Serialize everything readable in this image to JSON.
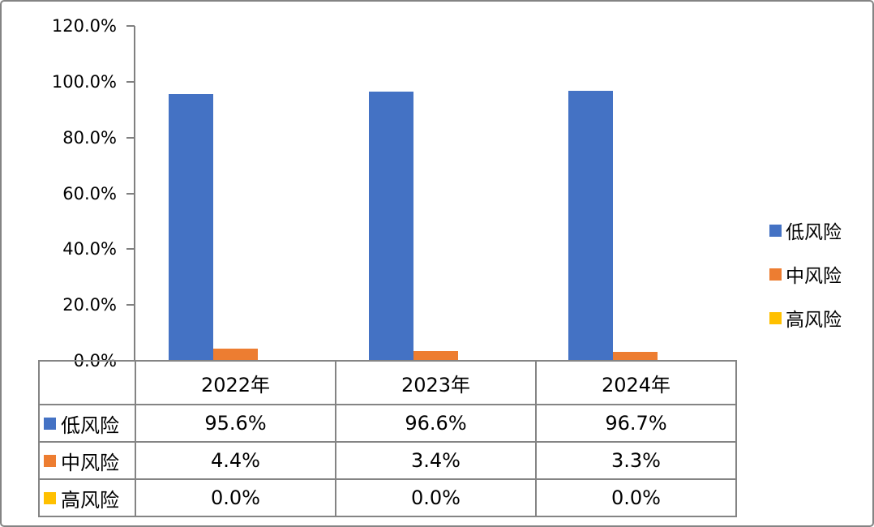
{
  "page": {
    "background": "#FFFFFF",
    "frame_border_color": "#848484",
    "axis_color": "#808080",
    "text_color": "#000000"
  },
  "chart_data": {
    "type": "bar",
    "title": "",
    "categories": [
      "2022年",
      "2023年",
      "2024年"
    ],
    "series": [
      {
        "name": "低风险",
        "color": "#4472C4",
        "values": [
          95.6,
          96.6,
          96.7
        ],
        "display_values": [
          "95.6%",
          "96.6%",
          "96.7%"
        ]
      },
      {
        "name": "中风险",
        "color": "#ED7D31",
        "values": [
          4.4,
          3.4,
          3.3
        ],
        "display_values": [
          "4.4%",
          "3.4%",
          "3.3%"
        ]
      },
      {
        "name": "高风险",
        "color": "#FFC000",
        "values": [
          0.0,
          0.0,
          0.0
        ],
        "display_values": [
          "0.0%",
          "0.0%",
          "0.0%"
        ]
      }
    ],
    "ylim": [
      0,
      120
    ],
    "ytick_labels": [
      "0.0%",
      "20.0%",
      "40.0%",
      "60.0%",
      "80.0%",
      "100.0%",
      "120.0%"
    ],
    "xlabel": "",
    "ylabel": "",
    "grid": false,
    "legend_position": "right",
    "has_data_table": true
  }
}
